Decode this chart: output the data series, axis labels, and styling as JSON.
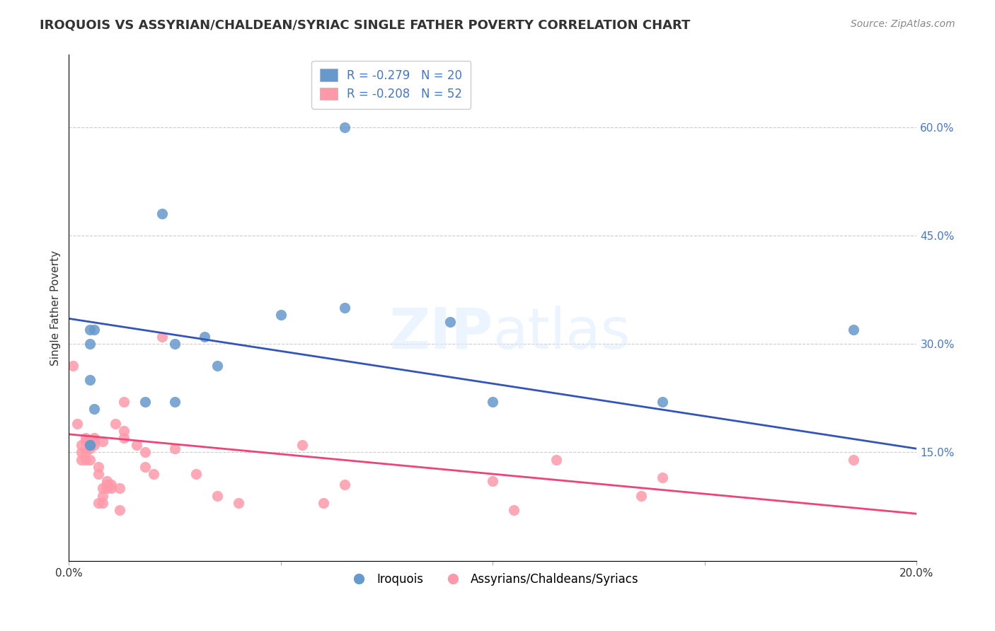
{
  "title": "IROQUOIS VS ASSYRIAN/CHALDEAN/SYRIAC SINGLE FATHER POVERTY CORRELATION CHART",
  "source": "Source: ZipAtlas.com",
  "ylabel": "Single Father Poverty",
  "right_yticks": [
    "60.0%",
    "45.0%",
    "30.0%",
    "15.0%"
  ],
  "right_ytick_vals": [
    0.6,
    0.45,
    0.3,
    0.15
  ],
  "xlim": [
    0.0,
    0.2
  ],
  "ylim": [
    0.0,
    0.7
  ],
  "blue_color": "#6699CC",
  "pink_color": "#FF99AA",
  "blue_line_color": "#3355BB",
  "pink_line_color": "#EE4477",
  "legend_blue_R": "R = -0.279",
  "legend_blue_N": "N = 20",
  "legend_pink_R": "R = -0.208",
  "legend_pink_N": "N = 52",
  "blue_points_x": [
    0.005,
    0.005,
    0.005,
    0.005,
    0.005,
    0.006,
    0.006,
    0.018,
    0.022,
    0.025,
    0.025,
    0.032,
    0.035,
    0.05,
    0.065,
    0.065,
    0.09,
    0.1,
    0.14,
    0.185
  ],
  "blue_points_y": [
    0.16,
    0.16,
    0.25,
    0.3,
    0.32,
    0.21,
    0.32,
    0.22,
    0.48,
    0.22,
    0.3,
    0.31,
    0.27,
    0.34,
    0.35,
    0.6,
    0.33,
    0.22,
    0.22,
    0.32
  ],
  "blue_line_x": [
    0.0,
    0.2
  ],
  "blue_line_y": [
    0.335,
    0.155
  ],
  "pink_points_x": [
    0.001,
    0.002,
    0.003,
    0.003,
    0.003,
    0.004,
    0.004,
    0.004,
    0.004,
    0.005,
    0.005,
    0.005,
    0.005,
    0.006,
    0.006,
    0.006,
    0.007,
    0.007,
    0.007,
    0.008,
    0.008,
    0.008,
    0.008,
    0.009,
    0.009,
    0.009,
    0.01,
    0.01,
    0.011,
    0.012,
    0.012,
    0.013,
    0.013,
    0.013,
    0.016,
    0.018,
    0.018,
    0.02,
    0.022,
    0.025,
    0.03,
    0.035,
    0.04,
    0.055,
    0.06,
    0.065,
    0.1,
    0.105,
    0.115,
    0.135,
    0.14,
    0.185
  ],
  "pink_points_y": [
    0.27,
    0.19,
    0.14,
    0.15,
    0.16,
    0.14,
    0.15,
    0.165,
    0.17,
    0.14,
    0.155,
    0.16,
    0.165,
    0.16,
    0.165,
    0.17,
    0.08,
    0.12,
    0.13,
    0.08,
    0.09,
    0.1,
    0.165,
    0.1,
    0.105,
    0.11,
    0.1,
    0.105,
    0.19,
    0.07,
    0.1,
    0.17,
    0.18,
    0.22,
    0.16,
    0.13,
    0.15,
    0.12,
    0.31,
    0.155,
    0.12,
    0.09,
    0.08,
    0.16,
    0.08,
    0.105,
    0.11,
    0.07,
    0.14,
    0.09,
    0.115,
    0.14
  ],
  "pink_line_x": [
    0.0,
    0.2
  ],
  "pink_line_y": [
    0.175,
    0.065
  ]
}
